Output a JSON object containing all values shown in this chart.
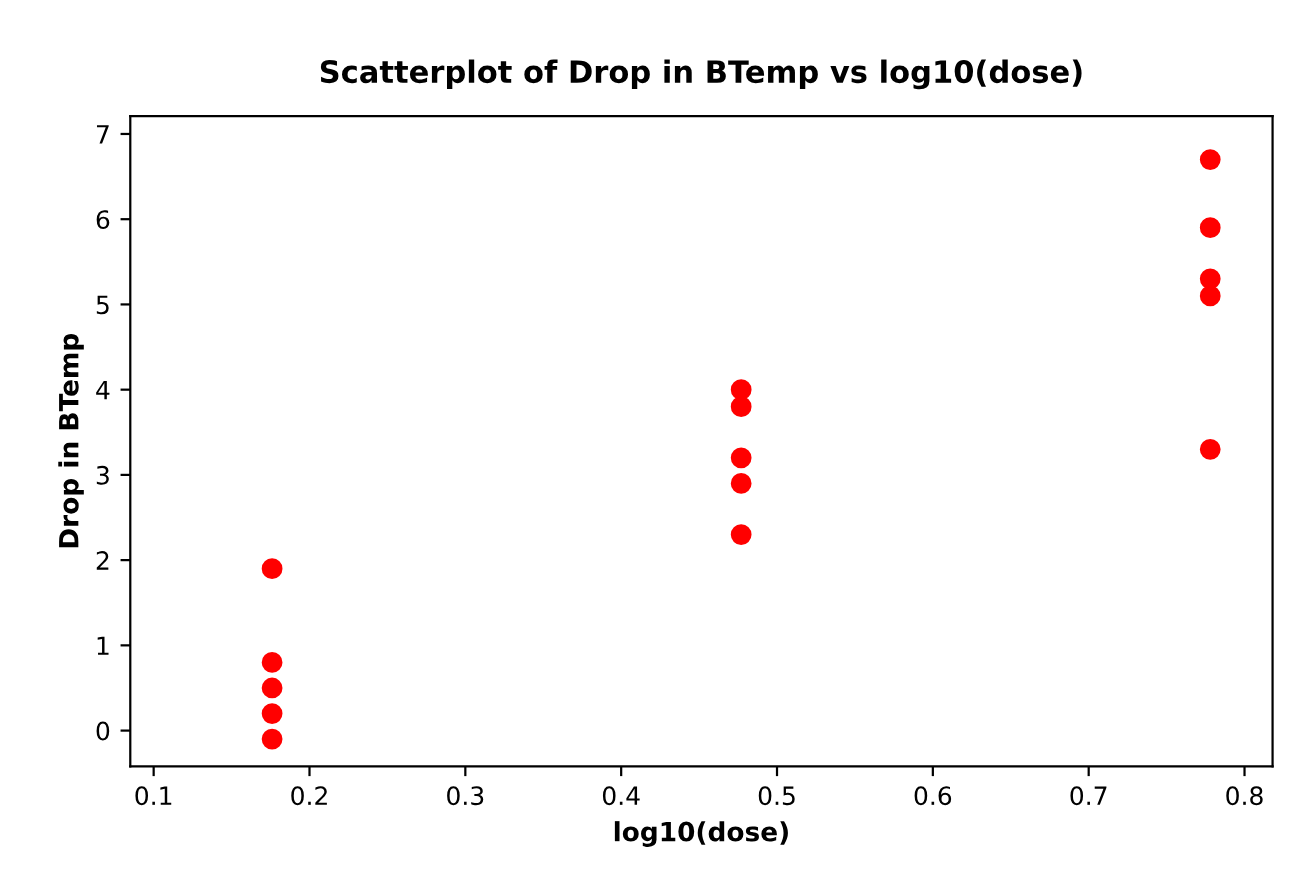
{
  "chart_data": {
    "type": "scatter",
    "title": "Scatterplot of Drop in BTemp vs log10(dose)",
    "xlabel": "log10(dose)",
    "ylabel": "Drop in BTemp",
    "series": [
      {
        "color": "#ff0000",
        "x": [
          0.176,
          0.176,
          0.176,
          0.176,
          0.176,
          0.477,
          0.477,
          0.477,
          0.477,
          0.477,
          0.778,
          0.778,
          0.778,
          0.778,
          0.778
        ],
        "values": [
          1.9,
          0.8,
          0.5,
          0.2,
          -0.1,
          4.0,
          3.8,
          3.2,
          2.9,
          2.3,
          6.7,
          5.9,
          5.3,
          5.1,
          3.3
        ]
      }
    ],
    "xlim": [
      0.085,
      0.818
    ],
    "ylim": [
      -0.42,
      7.21
    ],
    "xticks": [
      0.1,
      0.2,
      0.3,
      0.4,
      0.5,
      0.6,
      0.7,
      0.8
    ],
    "yticks": [
      0,
      1,
      2,
      3,
      4,
      5,
      6,
      7
    ],
    "marker": "circle",
    "grid": false,
    "legend": false
  }
}
